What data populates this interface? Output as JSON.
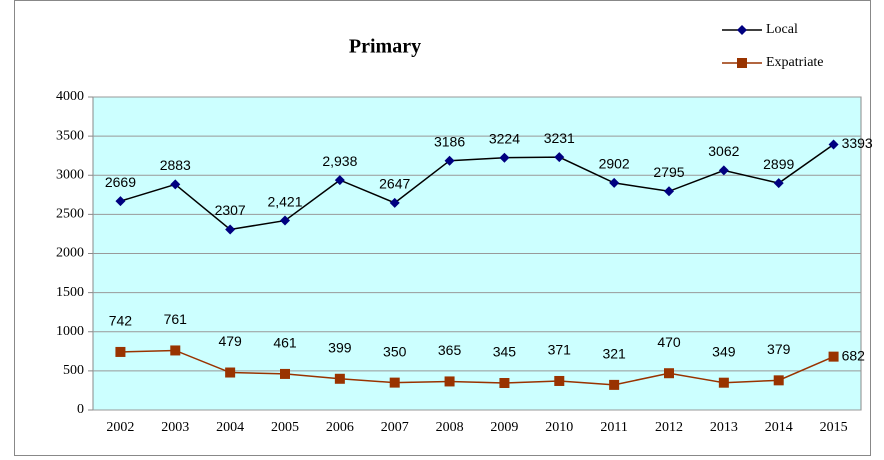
{
  "chart_data": {
    "type": "line",
    "title": "Primary",
    "categories": [
      "2002",
      "2003",
      "2004",
      "2005",
      "2006",
      "2007",
      "2008",
      "2009",
      "2010",
      "2011",
      "2012",
      "2013",
      "2014",
      "2015"
    ],
    "series": [
      {
        "name": "Local",
        "color": "#000080",
        "line_color": "#000000",
        "marker": "diamond",
        "values": [
          2669,
          2883,
          2307,
          2421,
          2938,
          2647,
          3186,
          3224,
          3231,
          2902,
          2795,
          3062,
          2899,
          3393
        ],
        "value_labels": [
          "2669",
          "2883",
          "2307",
          "2,421",
          "2,938",
          "2647",
          "3186",
          "3224",
          "3231",
          "2902",
          "2795",
          "3062",
          "2899",
          "3393"
        ]
      },
      {
        "name": "Expatriate",
        "color": "#993300",
        "line_color": "#993300",
        "marker": "square",
        "values": [
          742,
          761,
          479,
          461,
          399,
          350,
          365,
          345,
          371,
          321,
          470,
          349,
          379,
          682
        ],
        "value_labels": [
          "742",
          "761",
          "479",
          "461",
          "399",
          "350",
          "365",
          "345",
          "371",
          "321",
          "470",
          "349",
          "379",
          "682"
        ]
      }
    ],
    "ylim": [
      0,
      4000
    ],
    "yticks": [
      0,
      500,
      1000,
      1500,
      2000,
      2500,
      3000,
      3500,
      4000
    ],
    "grid": true,
    "legend": "top-right"
  }
}
